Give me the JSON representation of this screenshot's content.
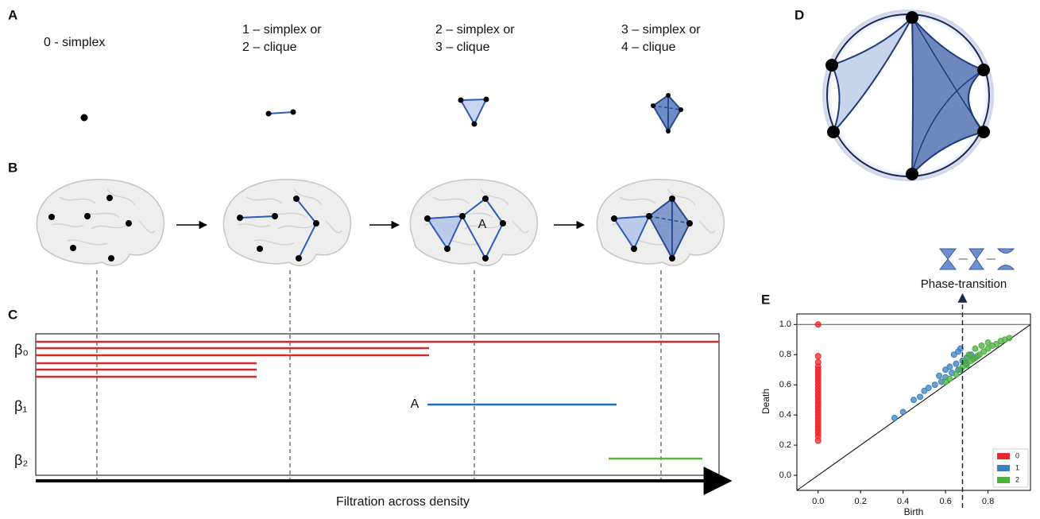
{
  "panel_labels": [
    "A",
    "B",
    "C",
    "D",
    "E"
  ],
  "simplices": [
    {
      "lines": [
        "0 - simplex"
      ]
    },
    {
      "lines": [
        "1 – simplex  or",
        "2 – clique"
      ]
    },
    {
      "lines": [
        "2 – simplex  or",
        "3 – clique"
      ]
    },
    {
      "lines": [
        "3 – simplex  or",
        "4 – clique"
      ]
    }
  ],
  "brain_label": "A",
  "barcode": {
    "betti_labels": [
      "β₀",
      "β₁",
      "β₂"
    ],
    "bar_label": "A",
    "x_label": "Filtration across density"
  },
  "persistence": {
    "type": "scatter",
    "annotation": "Phase-transition",
    "x_label": "Birth",
    "y_label": "Death",
    "xlim": [
      -0.1,
      1.0
    ],
    "ylim": [
      -0.1,
      1.07
    ],
    "xticks": [
      {
        "value": 0,
        "label": "0.0"
      },
      0.2,
      0.4,
      0.6,
      0.8
    ],
    "yticks": [
      {
        "value": 0,
        "label": "0.0"
      },
      0.2,
      0.4,
      0.6,
      0.8,
      {
        "value": 1,
        "label": "1.0"
      }
    ],
    "infinity_line": 1.0,
    "transition_line": 0.68,
    "series": [
      {
        "name": "0",
        "color": "#e8282b",
        "x": [
          0,
          0,
          0,
          0,
          0,
          0,
          0,
          0,
          0,
          0,
          0,
          0,
          0,
          0,
          0,
          0,
          0,
          0,
          0,
          0,
          0,
          0,
          0,
          0,
          0,
          0,
          0,
          0
        ],
        "y": [
          1.0,
          0.79,
          0.75,
          0.72,
          0.7,
          0.68,
          0.66,
          0.64,
          0.62,
          0.6,
          0.58,
          0.56,
          0.54,
          0.52,
          0.5,
          0.48,
          0.46,
          0.44,
          0.42,
          0.4,
          0.38,
          0.36,
          0.34,
          0.32,
          0.3,
          0.28,
          0.26,
          0.23
        ]
      },
      {
        "name": "1",
        "color": "#3a7fc0",
        "x": [
          0.36,
          0.4,
          0.45,
          0.48,
          0.5,
          0.52,
          0.55,
          0.57,
          0.58,
          0.6,
          0.6,
          0.62,
          0.63,
          0.64,
          0.65,
          0.66,
          0.67,
          0.68,
          0.7,
          0.72,
          0.66,
          0.7,
          0.74
        ],
        "y": [
          0.38,
          0.42,
          0.5,
          0.52,
          0.56,
          0.58,
          0.6,
          0.66,
          0.62,
          0.7,
          0.65,
          0.72,
          0.68,
          0.8,
          0.74,
          0.7,
          0.84,
          0.76,
          0.78,
          0.8,
          0.82,
          0.74,
          0.78
        ]
      },
      {
        "name": "2",
        "color": "#4caf3e",
        "x": [
          0.6,
          0.62,
          0.65,
          0.67,
          0.68,
          0.7,
          0.72,
          0.73,
          0.75,
          0.76,
          0.78,
          0.8,
          0.82,
          0.84,
          0.86,
          0.88,
          0.9,
          0.74,
          0.77,
          0.71,
          0.69,
          0.8
        ],
        "y": [
          0.62,
          0.64,
          0.67,
          0.7,
          0.72,
          0.73,
          0.76,
          0.77,
          0.79,
          0.8,
          0.82,
          0.84,
          0.86,
          0.87,
          0.89,
          0.9,
          0.91,
          0.84,
          0.86,
          0.8,
          0.76,
          0.88
        ]
      }
    ]
  }
}
